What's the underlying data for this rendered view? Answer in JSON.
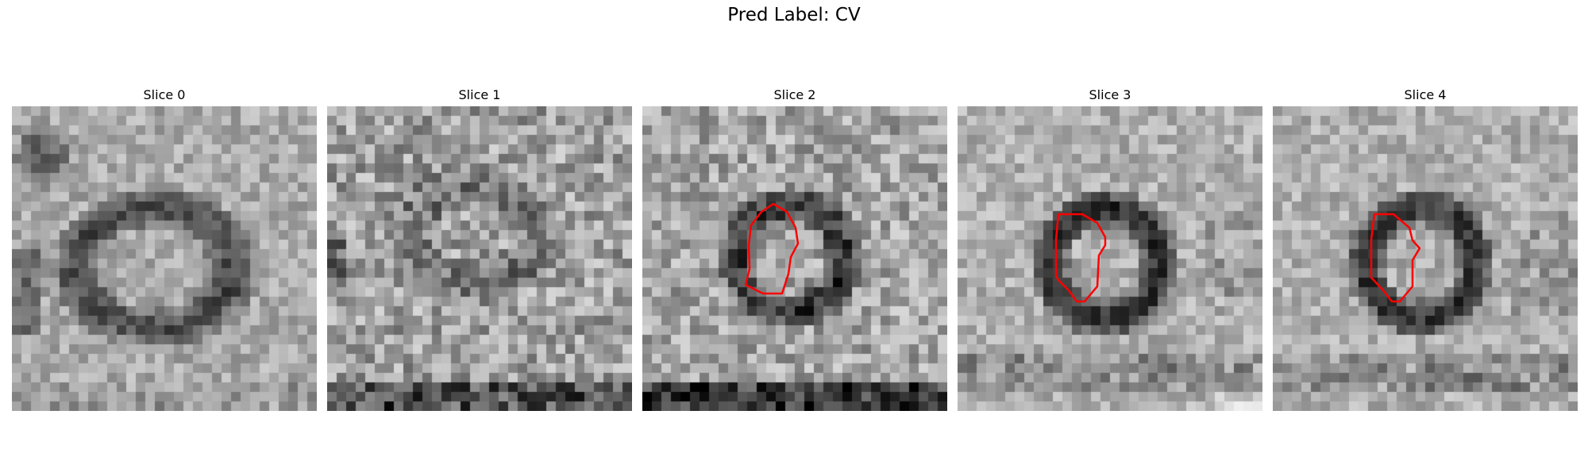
{
  "figure": {
    "title": "Pred Label: CV"
  },
  "panels": [
    {
      "title": "Slice 0",
      "has_contour": false
    },
    {
      "title": "Slice 1",
      "has_contour": false
    },
    {
      "title": "Slice 2",
      "has_contour": true
    },
    {
      "title": "Slice 3",
      "has_contour": true
    },
    {
      "title": "Slice 4",
      "has_contour": true
    }
  ],
  "colors": {
    "contour": "#ff0000",
    "background": "#ffffff"
  },
  "colormap": "gray"
}
